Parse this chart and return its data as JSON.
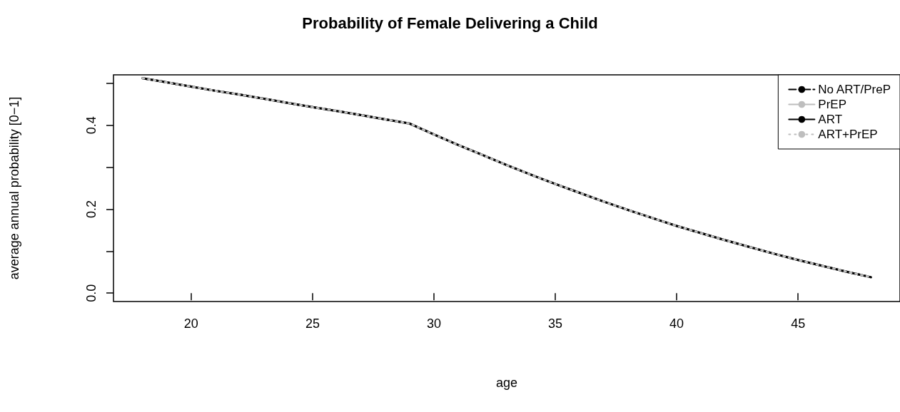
{
  "chart_data": {
    "type": "line",
    "title": "Probability of Female Delivering a Child",
    "xlabel": "age",
    "ylabel": "average annual probability [0−1]",
    "x": [
      18,
      19,
      20,
      21,
      22,
      23,
      24,
      25,
      26,
      27,
      28,
      29,
      30,
      31,
      32,
      33,
      34,
      35,
      36,
      37,
      38,
      39,
      40,
      41,
      42,
      43,
      44,
      45,
      46,
      47,
      48
    ],
    "series": [
      {
        "name": "No ART/PreP",
        "color": "#000000",
        "line_style": "dashed",
        "values": [
          0.512,
          0.502,
          0.492,
          0.482,
          0.473,
          0.463,
          0.453,
          0.443,
          0.434,
          0.424,
          0.414,
          0.404,
          0.378,
          0.353,
          0.329,
          0.305,
          0.282,
          0.26,
          0.239,
          0.218,
          0.198,
          0.179,
          0.16,
          0.143,
          0.126,
          0.11,
          0.094,
          0.079,
          0.065,
          0.051,
          0.038
        ]
      },
      {
        "name": "PrEP",
        "color": "#bebebe",
        "line_style": "solid",
        "values": [
          0.512,
          0.502,
          0.492,
          0.482,
          0.473,
          0.463,
          0.453,
          0.443,
          0.434,
          0.424,
          0.414,
          0.404,
          0.378,
          0.353,
          0.329,
          0.305,
          0.282,
          0.26,
          0.239,
          0.218,
          0.198,
          0.179,
          0.16,
          0.143,
          0.126,
          0.11,
          0.094,
          0.079,
          0.065,
          0.051,
          0.038
        ]
      },
      {
        "name": "ART",
        "color": "#000000",
        "line_style": "solid",
        "values": [
          0.512,
          0.502,
          0.492,
          0.482,
          0.473,
          0.463,
          0.453,
          0.443,
          0.434,
          0.424,
          0.414,
          0.404,
          0.378,
          0.353,
          0.329,
          0.305,
          0.282,
          0.26,
          0.239,
          0.218,
          0.198,
          0.179,
          0.16,
          0.143,
          0.126,
          0.11,
          0.094,
          0.079,
          0.065,
          0.051,
          0.038
        ]
      },
      {
        "name": "ART+PrEP",
        "color": "#bebebe",
        "line_style": "dotted",
        "values": [
          0.512,
          0.502,
          0.492,
          0.482,
          0.473,
          0.463,
          0.453,
          0.443,
          0.434,
          0.424,
          0.414,
          0.404,
          0.378,
          0.353,
          0.329,
          0.305,
          0.282,
          0.26,
          0.239,
          0.218,
          0.198,
          0.179,
          0.16,
          0.143,
          0.126,
          0.11,
          0.094,
          0.079,
          0.065,
          0.051,
          0.038
        ]
      }
    ],
    "xlim": [
      16.8,
      49.2
    ],
    "xticks": [
      20,
      25,
      30,
      35,
      40,
      45
    ],
    "ylim": [
      -0.02,
      0.52
    ],
    "yticks": [
      {
        "value": 0,
        "label": "0.0"
      },
      {
        "value": 0.1,
        "label": null
      },
      {
        "value": 0.2,
        "label": "0.2"
      },
      {
        "value": 0.3,
        "label": null
      },
      {
        "value": 0.4,
        "label": "0.4"
      },
      {
        "value": 0.5,
        "label": null
      }
    ],
    "grid": false,
    "legend": "top right",
    "marker": "none"
  }
}
